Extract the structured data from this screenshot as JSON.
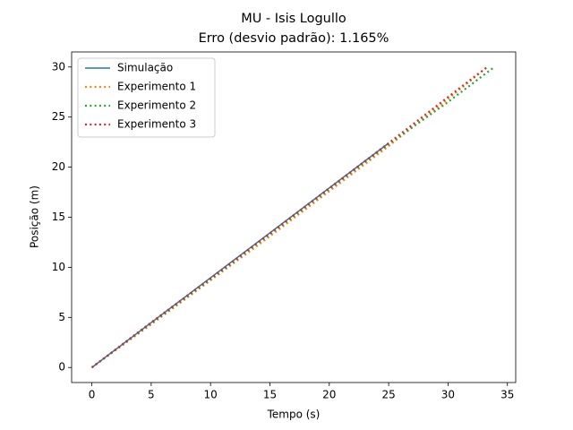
{
  "chart_data": {
    "type": "line",
    "title": "MU - Isis Logullo",
    "subtitle": "Erro (desvio padrão): 1.165%",
    "xlabel": "Tempo (s)",
    "ylabel": "Posição (m)",
    "series": [
      {
        "name": "Simulação",
        "color": "#1f77b4",
        "style": "solid",
        "x": [
          0,
          25
        ],
        "values": [
          0,
          22.4
        ]
      },
      {
        "name": "Experimento 1",
        "color": "#ff7f0e",
        "style": "dotted",
        "x": [
          0,
          5,
          10,
          15,
          20,
          25,
          30,
          33.3
        ],
        "values": [
          0,
          4.3,
          8.7,
          13.1,
          17.6,
          22.1,
          26.8,
          30
        ]
      },
      {
        "name": "Experimento 2",
        "color": "#2ca02c",
        "style": "dotted",
        "x": [
          0,
          5,
          10,
          15,
          20,
          25,
          30,
          33.9
        ],
        "values": [
          0,
          4.4,
          8.8,
          13.3,
          17.8,
          22.3,
          26.5,
          30
        ]
      },
      {
        "name": "Experimento 3",
        "color": "#d62728",
        "style": "dotted",
        "x": [
          0,
          5,
          10,
          15,
          20,
          25,
          30,
          33.3
        ],
        "values": [
          0,
          4.5,
          8.9,
          13.4,
          17.9,
          22.4,
          27.0,
          30
        ]
      }
    ],
    "xlim": [
      -1.7,
      35.7
    ],
    "xticks": [
      0,
      5,
      10,
      15,
      20,
      25,
      30,
      35
    ],
    "ylim": [
      -1.5,
      31.5
    ],
    "yticks": [
      0,
      5,
      10,
      15,
      20,
      25,
      30
    ],
    "legend": "upper left"
  }
}
